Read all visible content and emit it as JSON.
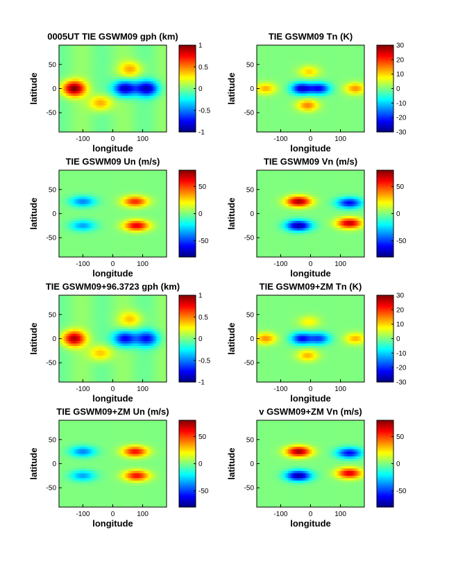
{
  "chart_data": [
    {
      "type": "heatmap",
      "title": "0005UT TIE GSWM09 gph (km)",
      "xlabel": "longitude",
      "ylabel": "latitude",
      "x_ticks": [
        -100,
        0,
        100
      ],
      "y_ticks": [
        50,
        0,
        -50
      ],
      "xlim": [
        -180,
        180
      ],
      "ylim": [
        -90,
        90
      ],
      "clim": [
        -1,
        1
      ],
      "colorbar_ticks": [
        "1",
        "0.5",
        "0",
        "-0.5",
        "-1"
      ],
      "colorbar_values": [
        1,
        0.5,
        0,
        -0.5,
        -1
      ],
      "pattern": "gph",
      "features": [
        {
          "lon": -130,
          "lat": 0,
          "value": 1.0
        },
        {
          "lon": 115,
          "lat": 0,
          "value": -0.85
        },
        {
          "lon": 40,
          "lat": 0,
          "value": -0.9
        },
        {
          "lon": -40,
          "lat": -30,
          "value": 0.45
        },
        {
          "lon": 60,
          "lat": 40,
          "value": 0.4
        }
      ]
    },
    {
      "type": "heatmap",
      "title": "TIE GSWM09 Tn (K)",
      "xlabel": "longitude",
      "ylabel": "latitude",
      "x_ticks": [
        -100,
        0,
        100
      ],
      "y_ticks": [
        50,
        0,
        -50
      ],
      "xlim": [
        -180,
        180
      ],
      "ylim": [
        -90,
        90
      ],
      "clim": [
        -30,
        30
      ],
      "colorbar_ticks": [
        "30",
        "20",
        "10",
        "0",
        "-10",
        "-20",
        "-30"
      ],
      "colorbar_values": [
        30,
        20,
        10,
        0,
        -10,
        -20,
        -30
      ],
      "pattern": "tn",
      "features": [
        {
          "lon": -30,
          "lat": 0,
          "value": -25
        },
        {
          "lon": 30,
          "lat": 0,
          "value": -22
        },
        {
          "lon": 150,
          "lat": 0,
          "value": 14
        },
        {
          "lon": -150,
          "lat": 0,
          "value": 12
        },
        {
          "lon": -10,
          "lat": -35,
          "value": 15
        },
        {
          "lon": -5,
          "lat": 35,
          "value": 10
        }
      ]
    },
    {
      "type": "heatmap",
      "title": "TIE GSWM09 Un (m/s)",
      "xlabel": "longitude",
      "ylabel": "latitude",
      "x_ticks": [
        -100,
        0,
        100
      ],
      "y_ticks": [
        50,
        0,
        -50
      ],
      "xlim": [
        -180,
        180
      ],
      "ylim": [
        -90,
        90
      ],
      "clim": [
        -80,
        80
      ],
      "colorbar_ticks": [
        "50",
        "0",
        "-50"
      ],
      "colorbar_values": [
        50,
        0,
        -50
      ],
      "pattern": "un",
      "features": [
        {
          "lon": 75,
          "lat": 25,
          "value": 55
        },
        {
          "lon": 80,
          "lat": -25,
          "value": 65
        },
        {
          "lon": -100,
          "lat": 25,
          "value": -40
        },
        {
          "lon": -100,
          "lat": -25,
          "value": -35
        }
      ]
    },
    {
      "type": "heatmap",
      "title": "TIE GSWM09 Vn (m/s)",
      "xlabel": "longitude",
      "ylabel": "latitude",
      "x_ticks": [
        -100,
        0,
        100
      ],
      "y_ticks": [
        50,
        0,
        -50
      ],
      "xlim": [
        -180,
        180
      ],
      "ylim": [
        -90,
        90
      ],
      "clim": [
        -80,
        80
      ],
      "colorbar_ticks": [
        "50",
        "0",
        "-50"
      ],
      "colorbar_values": [
        50,
        0,
        -50
      ],
      "pattern": "vn",
      "features": [
        {
          "lon": -40,
          "lat": 25,
          "value": 75
        },
        {
          "lon": -40,
          "lat": -25,
          "value": -75
        },
        {
          "lon": 130,
          "lat": -20,
          "value": 70
        },
        {
          "lon": 130,
          "lat": 22,
          "value": -60
        }
      ]
    },
    {
      "type": "heatmap",
      "title": "TIE GSWM09+96.3723 gph (km)",
      "xlabel": "longitude",
      "ylabel": "latitude",
      "x_ticks": [
        -100,
        0,
        100
      ],
      "y_ticks": [
        50,
        0,
        -50
      ],
      "xlim": [
        -180,
        180
      ],
      "ylim": [
        -90,
        90
      ],
      "clim": [
        -1,
        1
      ],
      "colorbar_ticks": [
        "1",
        "0.5",
        "0",
        "-0.5",
        "-1"
      ],
      "colorbar_values": [
        1,
        0.5,
        0,
        -0.5,
        -1
      ],
      "pattern": "gph",
      "features": [
        {
          "lon": -130,
          "lat": 0,
          "value": 0.9
        },
        {
          "lon": 115,
          "lat": 0,
          "value": -0.7
        },
        {
          "lon": 40,
          "lat": 0,
          "value": -0.8
        },
        {
          "lon": -40,
          "lat": -30,
          "value": 0.4
        },
        {
          "lon": 60,
          "lat": 40,
          "value": 0.35
        }
      ]
    },
    {
      "type": "heatmap",
      "title": "TIE GSWM09+ZM Tn (K)",
      "xlabel": "longitude",
      "ylabel": "latitude",
      "x_ticks": [
        -100,
        0,
        100
      ],
      "y_ticks": [
        50,
        0,
        -50
      ],
      "xlim": [
        -180,
        180
      ],
      "ylim": [
        -90,
        90
      ],
      "clim": [
        -30,
        30
      ],
      "colorbar_ticks": [
        "30",
        "20",
        "10",
        "0",
        "-10",
        "-20",
        "-30"
      ],
      "colorbar_values": [
        30,
        20,
        10,
        0,
        -10,
        -20,
        -30
      ],
      "pattern": "tn",
      "features": [
        {
          "lon": -30,
          "lat": 0,
          "value": -22
        },
        {
          "lon": 30,
          "lat": 0,
          "value": -18
        },
        {
          "lon": 150,
          "lat": 0,
          "value": 12
        },
        {
          "lon": -150,
          "lat": 0,
          "value": 14
        },
        {
          "lon": -10,
          "lat": -35,
          "value": 12
        },
        {
          "lon": -5,
          "lat": 35,
          "value": 8
        }
      ]
    },
    {
      "type": "heatmap",
      "title": "TIE GSWM09+ZM Un (m/s)",
      "xlabel": "longitude",
      "ylabel": "latitude",
      "x_ticks": [
        -100,
        0,
        100
      ],
      "y_ticks": [
        50,
        0,
        -50
      ],
      "xlim": [
        -180,
        180
      ],
      "ylim": [
        -90,
        90
      ],
      "clim": [
        -80,
        80
      ],
      "colorbar_ticks": [
        "50",
        "0",
        "-50"
      ],
      "colorbar_values": [
        50,
        0,
        -50
      ],
      "pattern": "un",
      "features": [
        {
          "lon": 75,
          "lat": 25,
          "value": 60
        },
        {
          "lon": 80,
          "lat": -25,
          "value": 60
        },
        {
          "lon": -100,
          "lat": 25,
          "value": -40
        },
        {
          "lon": -100,
          "lat": -25,
          "value": -35
        }
      ]
    },
    {
      "type": "heatmap",
      "title": "v GSWM09+ZM Vn (m/s)",
      "xlabel": "longitude",
      "ylabel": "latitude",
      "x_ticks": [
        -100,
        0,
        100
      ],
      "y_ticks": [
        50,
        0,
        -50
      ],
      "xlim": [
        -180,
        180
      ],
      "ylim": [
        -90,
        90
      ],
      "clim": [
        -80,
        80
      ],
      "colorbar_ticks": [
        "50",
        "0",
        "-50"
      ],
      "colorbar_values": [
        50,
        0,
        -50
      ],
      "pattern": "vn",
      "features": [
        {
          "lon": -40,
          "lat": 25,
          "value": 75
        },
        {
          "lon": -40,
          "lat": -25,
          "value": -75
        },
        {
          "lon": 130,
          "lat": -20,
          "value": 65
        },
        {
          "lon": 130,
          "lat": 22,
          "value": -60
        }
      ]
    }
  ]
}
